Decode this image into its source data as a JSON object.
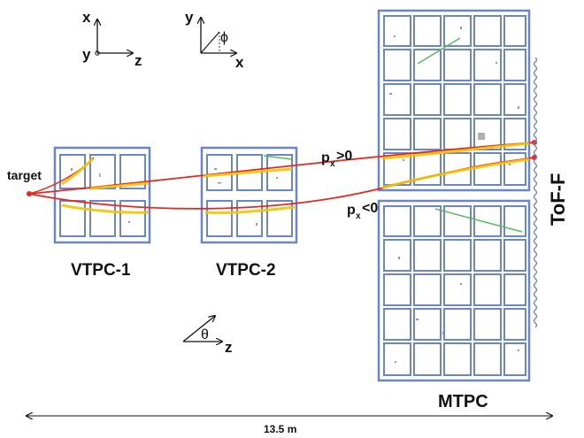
{
  "title": "",
  "labels": {
    "target": "target",
    "vtpc1": "VTPC-1",
    "vtpc2": "VTPC-2",
    "mtpc": "MTPC",
    "tof": "ToF-F",
    "px_pos": "p",
    "px_pos_sub": "x",
    "px_pos_rel": ">0",
    "px_neg": "p",
    "px_neg_sub": "x",
    "px_neg_rel": "<0",
    "scale": "13.5 m"
  },
  "axes": {
    "a1_x": "x",
    "a1_y": "y",
    "a1_z": "z",
    "a2_y": "y",
    "a2_x": "x",
    "a2_phi": "ϕ",
    "a3_theta": "θ",
    "a3_z": "z"
  },
  "colors": {
    "detector": "#6a86c8",
    "track": "#e8251f",
    "hits": "#f2c400",
    "hits_green": "#5cb85c"
  }
}
